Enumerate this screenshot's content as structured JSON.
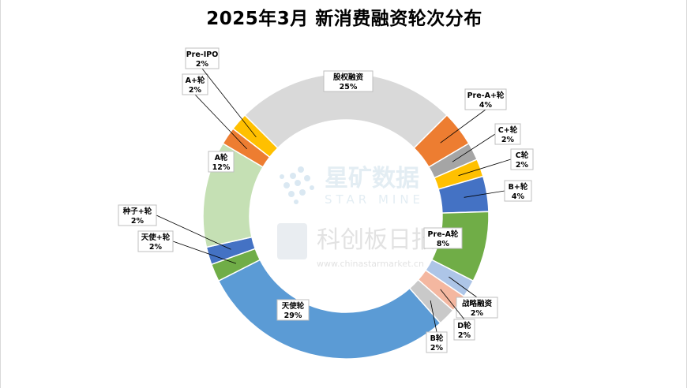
{
  "chart_data": {
    "type": "pie",
    "variant": "donut",
    "title": "2025年3月 新消费融资轮次分布",
    "slices": [
      {
        "label": "股权融资",
        "value": 25,
        "color": "#d9d9d9"
      },
      {
        "label": "Pre-A+轮",
        "value": 4,
        "color": "#ed7d31"
      },
      {
        "label": "C+轮",
        "value": 2,
        "color": "#a5a5a5"
      },
      {
        "label": "C轮",
        "value": 2,
        "color": "#ffc000"
      },
      {
        "label": "B+轮",
        "value": 4,
        "color": "#4472c4"
      },
      {
        "label": "Pre-A轮",
        "value": 8,
        "color": "#70ad47"
      },
      {
        "label": "战略融资",
        "value": 2,
        "color": "#adc5e7"
      },
      {
        "label": "D轮",
        "value": 2,
        "color": "#f4b7a0"
      },
      {
        "label": "B轮",
        "value": 2,
        "color": "#c9c9c9"
      },
      {
        "label": "天使轮",
        "value": 29,
        "color": "#5b9bd5"
      },
      {
        "label": "天使+轮",
        "value": 2,
        "color": "#70ad47"
      },
      {
        "label": "种子+轮",
        "value": 2,
        "color": "#4472c4"
      },
      {
        "label": "A轮",
        "value": 12,
        "color": "#c5e0b4"
      },
      {
        "label": "A+轮",
        "value": 2,
        "color": "#ed7d31"
      },
      {
        "label": "Pre-IPO",
        "value": 2,
        "color": "#ffc000"
      }
    ]
  },
  "watermark": {
    "line1": "星矿数据",
    "line2": "STAR MINE",
    "line3": "科创板日报",
    "line4": "www.chinastarmarket.cn"
  }
}
